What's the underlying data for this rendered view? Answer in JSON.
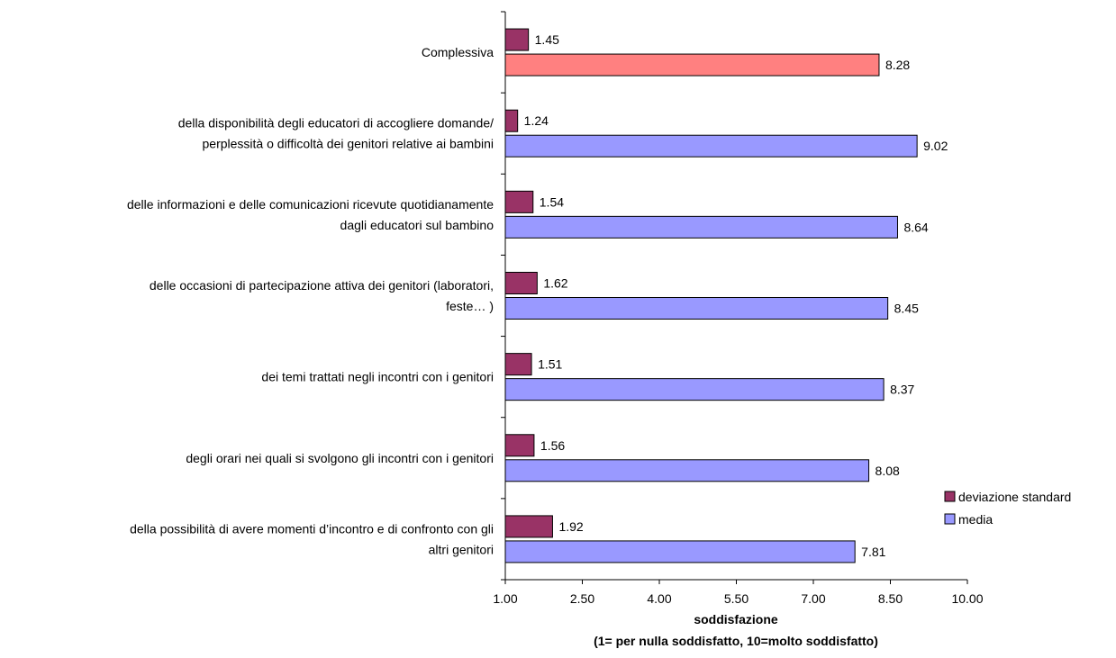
{
  "chart_data": {
    "type": "bar",
    "orientation": "horizontal",
    "categories": [
      [
        "Complessiva"
      ],
      [
        "della disponibilità degli educatori di accogliere domande/",
        "perplessità o difficoltà dei genitori relative ai bambini"
      ],
      [
        "delle informazioni e delle comunicazioni ricevute quotidianamente",
        "dagli educatori sul bambino"
      ],
      [
        "delle occasioni di partecipazione attiva dei genitori (laboratori,",
        "feste… )"
      ],
      [
        "dei temi trattati negli incontri con i genitori"
      ],
      [
        "degli orari nei quali si svolgono gli incontri con  i genitori"
      ],
      [
        "della possibilità di avere momenti d’incontro e di confronto con gli",
        "altri genitori"
      ]
    ],
    "series": [
      {
        "name": "deviazione standard",
        "values": [
          1.45,
          1.24,
          1.54,
          1.62,
          1.51,
          1.56,
          1.92
        ],
        "labels": [
          "1.45",
          "1.24",
          "1.54",
          "1.62",
          "1.51",
          "1.56",
          "1.92"
        ]
      },
      {
        "name": "media",
        "values": [
          8.28,
          9.02,
          8.64,
          8.45,
          8.37,
          8.08,
          7.81
        ],
        "labels": [
          "8.28",
          "9.02",
          "8.64",
          "8.45",
          "8.37",
          "8.08",
          "7.81"
        ]
      }
    ],
    "xlim": [
      1.0,
      10.0
    ],
    "xticks": [
      "1.00",
      "2.50",
      "4.00",
      "5.50",
      "7.00",
      "8.50",
      "10.00"
    ],
    "xtick_values": [
      1.0,
      2.5,
      4.0,
      5.5,
      7.0,
      8.5,
      10.0
    ],
    "xlabel": [
      "soddisfazione",
      "(1= per nulla soddisfatto, 10=molto soddisfatto)"
    ],
    "legend_position": "right",
    "grid": false,
    "colors": {
      "deviazione standard": "#993366",
      "media": "#9999FF",
      "highlight": "#FF8080",
      "axis": "#000000"
    }
  }
}
